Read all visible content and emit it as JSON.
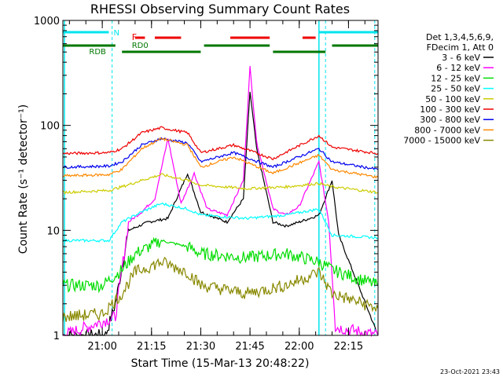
{
  "colors": {
    "3-6": "#000000",
    "6-12": "#ff00ff",
    "12-25": "#00dd00",
    "25-50": "#00ffff",
    "50-100": "#cccc00",
    "100-300": "#ee0000",
    "300-800": "#0000ee",
    "800-7000": "#ff8800",
    "7000-15000": "#888800",
    "attenuator_bar": "#00e5ee",
    "flag_F": "#ee0000",
    "flag_RD0": "#007700",
    "flag_RDB": "#007700"
  },
  "chart_data": {
    "type": "line",
    "title": "RHESSI Observing Summary Count Rates",
    "xlabel": "Start Time (15-Mar-13 20:48:22)",
    "ylabel": "Count Rate (s⁻¹ detector⁻¹)",
    "y_scale": "log",
    "ylim": [
      1,
      1000
    ],
    "y_ticks": [
      "1",
      "10",
      "100",
      "1000"
    ],
    "x_range": [
      "20:48",
      "22:24"
    ],
    "x_ticks": [
      "21:00",
      "21:15",
      "21:30",
      "21:45",
      "22:00",
      "22:15"
    ],
    "grid": false,
    "legend_position": "right",
    "legend_header": [
      "Det 1,3,4,5,6,9,",
      "FDecim 1, Att 0"
    ],
    "series": [
      {
        "name": "3 - 6 keV",
        "key": "3-6",
        "x": [
          "20:48",
          "21:01",
          "21:04",
          "21:08",
          "21:14",
          "21:20",
          "21:26",
          "21:30",
          "21:38",
          "21:43",
          "21:45",
          "21:47",
          "21:52",
          "21:56",
          "22:00",
          "22:06",
          "22:10",
          "22:12",
          "22:24"
        ],
        "values": [
          1,
          1,
          2,
          10,
          12,
          13,
          35,
          15,
          12,
          20,
          210,
          60,
          12,
          11,
          12,
          14,
          30,
          9,
          1
        ]
      },
      {
        "name": "6 - 12 keV",
        "key": "6-12",
        "x": [
          "20:48",
          "21:04",
          "21:08",
          "21:12",
          "21:16",
          "21:20",
          "21:24",
          "21:28",
          "21:32",
          "21:38",
          "21:43",
          "21:45",
          "21:47",
          "21:52",
          "21:56",
          "22:00",
          "22:06",
          "22:09",
          "22:11",
          "22:24"
        ],
        "values": [
          1,
          1.5,
          12,
          15,
          20,
          75,
          18,
          35,
          16,
          14,
          30,
          360,
          70,
          16,
          14,
          17,
          45,
          12,
          1.2,
          1
        ]
      },
      {
        "name": "12 - 25 keV",
        "key": "12-25",
        "x": [
          "20:48",
          "21:00",
          "21:06",
          "21:10",
          "21:18",
          "21:26",
          "21:30",
          "21:44",
          "21:56",
          "22:06",
          "22:10",
          "22:24"
        ],
        "values": [
          3,
          3,
          4.2,
          6,
          8,
          7,
          6,
          5.5,
          6,
          5,
          4.2,
          3
        ]
      },
      {
        "name": "25 - 50 keV",
        "key": "25-50",
        "x": [
          "20:48",
          "21:02",
          "21:06",
          "21:12",
          "21:18",
          "21:26",
          "21:30",
          "21:44",
          "21:56",
          "22:06",
          "22:10",
          "22:24"
        ],
        "values": [
          8,
          8,
          12,
          15,
          18,
          16,
          14,
          13,
          14,
          16,
          9,
          8.5
        ]
      },
      {
        "name": "50 - 100 keV",
        "key": "50-100",
        "x": [
          "20:48",
          "21:02",
          "21:06",
          "21:12",
          "21:18",
          "21:26",
          "21:30",
          "21:44",
          "21:56",
          "22:06",
          "22:10",
          "22:24"
        ],
        "values": [
          23,
          24,
          26,
          30,
          34,
          30,
          27,
          25,
          26,
          28,
          26,
          23
        ]
      },
      {
        "name": "100 - 300 keV",
        "key": "100-300",
        "x": [
          "20:48",
          "21:02",
          "21:06",
          "21:12",
          "21:18",
          "21:26",
          "21:30",
          "21:40",
          "21:52",
          "22:06",
          "22:10",
          "22:24"
        ],
        "values": [
          54,
          55,
          60,
          85,
          95,
          85,
          55,
          65,
          48,
          80,
          62,
          54
        ]
      },
      {
        "name": "300 - 800 keV",
        "key": "300-800",
        "x": [
          "20:48",
          "21:02",
          "21:06",
          "21:12",
          "21:18",
          "21:26",
          "21:30",
          "21:40",
          "21:52",
          "22:06",
          "22:10",
          "22:24"
        ],
        "values": [
          40,
          41,
          45,
          65,
          75,
          68,
          45,
          55,
          40,
          60,
          45,
          38
        ]
      },
      {
        "name": "800 - 7000 keV",
        "key": "800-7000",
        "x": [
          "20:48",
          "21:02",
          "21:06",
          "21:12",
          "21:18",
          "21:26",
          "21:30",
          "21:40",
          "21:52",
          "22:06",
          "22:10",
          "22:24"
        ],
        "values": [
          33,
          34,
          38,
          60,
          75,
          65,
          40,
          50,
          35,
          52,
          38,
          32
        ]
      },
      {
        "name": "7000 - 15000 keV",
        "key": "7000-15000",
        "x": [
          "20:48",
          "21:00",
          "21:06",
          "21:10",
          "21:18",
          "21:26",
          "21:30",
          "21:44",
          "21:56",
          "22:06",
          "22:10",
          "22:24"
        ],
        "values": [
          1.5,
          1.6,
          2.5,
          4,
          5,
          4,
          3,
          2.5,
          3,
          4,
          2.5,
          1.8
        ]
      }
    ],
    "annotations": [
      {
        "text": "N",
        "color": "#00e5ee"
      },
      {
        "text": "F",
        "color": "#ee0000"
      },
      {
        "text": "RD0",
        "color": "#007700"
      },
      {
        "text": "RDB",
        "color": "#007700"
      }
    ],
    "footer": "23-Oct-2021 23:43"
  }
}
